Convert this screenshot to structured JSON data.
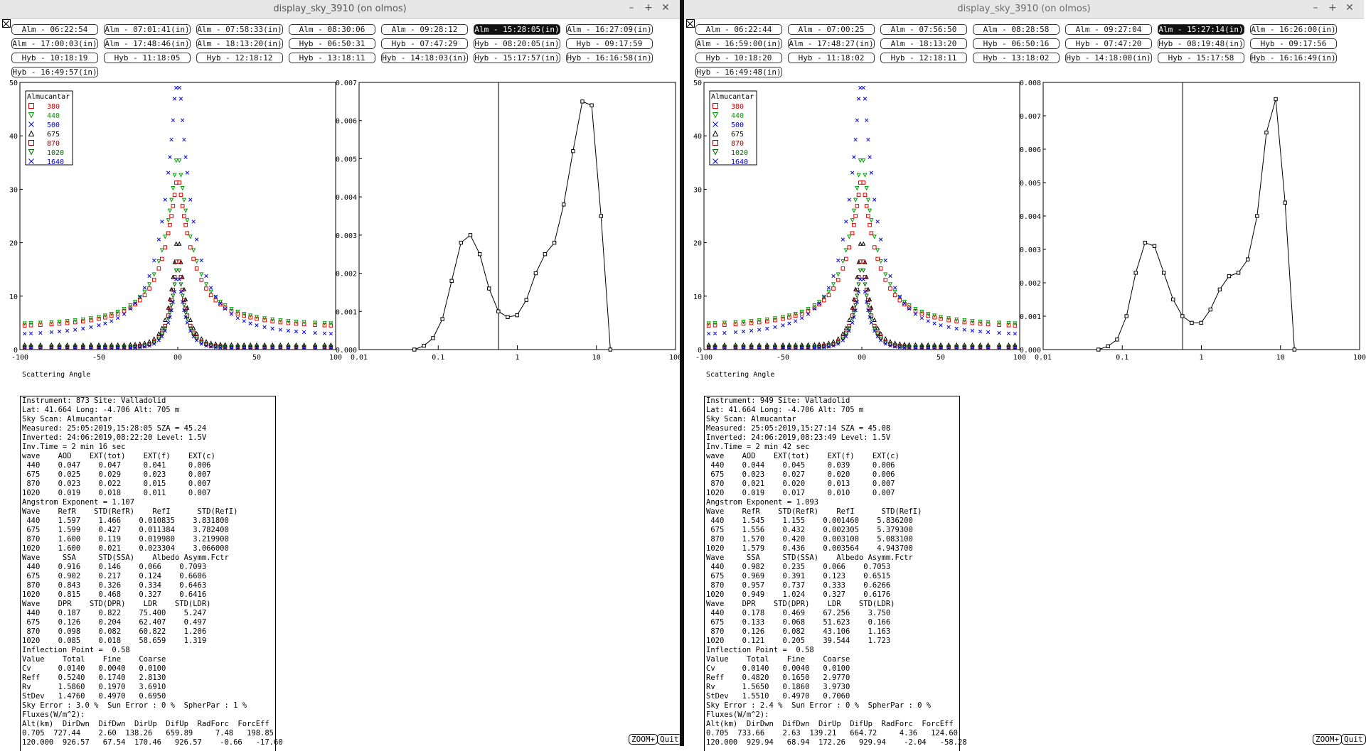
{
  "windows": [
    {
      "title": "display_sky_3910 (on olmos)",
      "selected": 5,
      "scans": [
        "Alm - 06:22:54",
        "Alm - 07:01:41(in)",
        "Alm - 07:58:33(in)",
        "Alm - 08:30:06",
        "Alm - 09:28:12",
        "Alm - 15:28:05(in)",
        "Alm - 16:27:09(in)",
        "Alm - 17:00:03(in)",
        "Alm - 17:48:46(in)",
        "Alm - 18:13:20(in)",
        "Hyb - 06:50:31",
        "Hyb - 07:47:29",
        "Hyb - 08:20:05(in)",
        "Hyb - 09:17:59",
        "Hyb - 10:18:19",
        "Hyb - 11:18:05",
        "Hyb - 12:18:12",
        "Hyb - 13:18:11",
        "Hyb - 14:18:03(in)",
        "Hyb - 15:17:57(in)",
        "Hyb - 16:16:58(in)",
        "Hyb - 16:49:57(in)"
      ],
      "sky_ticks_y": [
        "50",
        "40",
        "30",
        "20",
        "10",
        "0"
      ],
      "sky_ticks_x": [
        "-100",
        "-50",
        "00",
        "50",
        "100"
      ],
      "sky_xlabel": "Scattering Angle",
      "legend_title": "Almucantar",
      "legend": [
        {
          "label": "380",
          "color": "#e00000",
          "marker": "square"
        },
        {
          "label": "440",
          "color": "#00a000",
          "marker": "tri-down"
        },
        {
          "label": "500",
          "color": "#0000e0",
          "marker": "x"
        },
        {
          "label": "675",
          "color": "#000000",
          "marker": "tri-up"
        },
        {
          "label": "870",
          "color": "#8b0000",
          "marker": "square"
        },
        {
          "label": "1020",
          "color": "#006400",
          "marker": "tri-down"
        },
        {
          "label": "1640",
          "color": "#0000cd",
          "marker": "x"
        }
      ],
      "size_ticks_y": [
        "0.007",
        "0.006",
        "0.005",
        "0.004",
        "0.003",
        "0.002",
        "0.001",
        "0.000"
      ],
      "size_ticks_x": [
        "0.01",
        "0.1",
        "1",
        "10",
        "100"
      ],
      "size_ymax": 0.007,
      "inflection_radius": 0.58,
      "size_r": [
        0.05,
        0.066,
        0.086,
        0.113,
        0.148,
        0.194,
        0.255,
        0.335,
        0.439,
        0.576,
        0.756,
        0.992,
        1.302,
        1.708,
        2.241,
        2.94,
        3.857,
        5.061,
        6.641,
        8.713,
        11.432,
        15.0
      ],
      "size_values": [
        0.0,
        0.0001,
        0.0003,
        0.0008,
        0.0018,
        0.0028,
        0.003,
        0.0025,
        0.0016,
        0.001,
        0.00085,
        0.0009,
        0.0013,
        0.002,
        0.0025,
        0.0028,
        0.0038,
        0.0052,
        0.0065,
        0.0064,
        0.0035,
        0.0
      ],
      "info": [
        "Instrument: 873 Site: Valladolid",
        "Lat: 41.664 Long: -4.706 Alt: 705 m",
        "Sky Scan: Almucantar",
        "Measured: 25:05:2019,15:28:05 SZA = 45.24",
        "Inverted: 24:06:2019,08:22:20 Level: 1.5V",
        "Inv.Time = 2 min 16 sec",
        "wave    AOD    EXT(tot)    EXT(f)    EXT(c)",
        " 440    0.047    0.047     0.041     0.006",
        " 675    0.025    0.029     0.023     0.007",
        " 870    0.023    0.022     0.015     0.007",
        "1020    0.019    0.018     0.011     0.007",
        "Angstrom Exponent = 1.107",
        "Wave    RefR    STD(RefR)    RefI      STD(RefI)",
        " 440    1.597    1.466    0.010835    3.831800",
        " 675    1.599    0.427    0.011384    3.782400",
        " 870    1.600    0.119    0.019980    3.219900",
        "1020    1.600    0.021    0.023304    3.066000",
        "Wave     SSA     STD(SSA)    Albedo Asymm.Fctr",
        " 440    0.916    0.146    0.066    0.7093",
        " 675    0.902    0.217    0.124    0.6606",
        " 870    0.843    0.326    0.334    0.6463",
        "1020    0.815    0.468    0.327    0.6416",
        "Wave    DPR    STD(DPR)    LDR    STD(LDR)",
        " 440    0.187    0.822    75.400    5.247",
        " 675    0.126    0.204    62.407    0.497",
        " 870    0.098    0.082    60.822    1.206",
        "1020    0.085    0.018    58.659    1.319",
        "Inflection Point =  0.58",
        "Value    Total    Fine    Coarse",
        "Cv      0.0140   0.0040   0.0100",
        "Reff    0.5240   0.1740   2.8130",
        "Rv      1.5860   0.1970   3.6910",
        "StDev   1.4760   0.4970   0.6950",
        "Sky Error : 3.0 %  Sun Error : 0 %  SpherPar : 1 %",
        "Fluxes(W/m^2):",
        "Alt(km)  DirDwn  DifDwn  DirUp  DifUp  RadForc  ForcEff",
        "0.705  727.44    2.60  138.26   659.89     7.48   198.85",
        "120.000  926.57   67.54  170.46   926.57    -0.66   -17.60"
      ],
      "zoom_label": "ZOOM+",
      "quit_label": "Quit"
    },
    {
      "title": "display_sky_3910 (on olmos)",
      "selected": 5,
      "scans": [
        "Alm - 06:22:44",
        "Alm - 07:00:25",
        "Alm - 07:56:50",
        "Alm - 08:28:58",
        "Alm - 09:27:04",
        "Alm - 15:27:14(in)",
        "Alm - 16:26:00(in)",
        "Alm - 16:59:00(in)",
        "Alm - 17:48:27(in)",
        "Alm - 18:13:20",
        "Hyb - 06:50:16",
        "Hyb - 07:47:20",
        "Hyb - 08:19:48(in)",
        "Hyb - 09:17:56",
        "Hyb - 10:18:20",
        "Hyb - 11:18:02",
        "Hyb - 12:18:11",
        "Hyb - 13:18:02",
        "Hyb - 14:18:00(in)",
        "Hyb - 15:17:58",
        "Hyb - 16:16:49(in)",
        "Hyb - 16:49:48(in)"
      ],
      "sky_ticks_y": [
        "50",
        "40",
        "30",
        "20",
        "10",
        "0"
      ],
      "sky_ticks_x": [
        "-100",
        "-50",
        "00",
        "50",
        "100"
      ],
      "sky_xlabel": "Scattering Angle",
      "legend_title": "Almucantar",
      "legend": [
        {
          "label": "380",
          "color": "#e00000",
          "marker": "square"
        },
        {
          "label": "440",
          "color": "#00a000",
          "marker": "tri-down"
        },
        {
          "label": "500",
          "color": "#0000e0",
          "marker": "x"
        },
        {
          "label": "675",
          "color": "#000000",
          "marker": "tri-up"
        },
        {
          "label": "870",
          "color": "#8b0000",
          "marker": "square"
        },
        {
          "label": "1020",
          "color": "#006400",
          "marker": "tri-down"
        },
        {
          "label": "1640",
          "color": "#0000cd",
          "marker": "x"
        }
      ],
      "size_ticks_y": [
        "0.008",
        "0.007",
        "0.006",
        "0.005",
        "0.004",
        "0.003",
        "0.002",
        "0.001",
        "0.000"
      ],
      "size_ticks_x": [
        "0.01",
        "0.1",
        "1",
        "10",
        "100"
      ],
      "size_ymax": 0.008,
      "inflection_radius": 0.58,
      "size_r": [
        0.05,
        0.066,
        0.086,
        0.113,
        0.148,
        0.194,
        0.255,
        0.335,
        0.439,
        0.576,
        0.756,
        0.992,
        1.302,
        1.708,
        2.241,
        2.94,
        3.857,
        5.061,
        6.641,
        8.713,
        11.432,
        15.0
      ],
      "size_values": [
        0.0,
        0.0001,
        0.0003,
        0.001,
        0.0023,
        0.0032,
        0.0031,
        0.0023,
        0.0015,
        0.001,
        0.0008,
        0.0008,
        0.0012,
        0.0018,
        0.0022,
        0.0023,
        0.0027,
        0.004,
        0.0065,
        0.0075,
        0.0044,
        0.0
      ],
      "info": [
        "Instrument: 949 Site: Valladolid",
        "Lat: 41.664 Long: -4.706 Alt: 705 m",
        "Sky Scan: Almucantar",
        "Measured: 25:05:2019,15:27:14 SZA = 45.08",
        "Inverted: 24:06:2019,08:23:49 Level: 1.5V",
        "Inv.Time = 2 min 42 sec",
        "wave    AOD    EXT(tot)    EXT(f)    EXT(c)",
        " 440    0.044    0.045     0.039     0.006",
        " 675    0.023    0.027     0.020     0.006",
        " 870    0.021    0.020     0.013     0.007",
        "1020    0.019    0.017     0.010     0.007",
        "Angstrom Exponent = 1.093",
        "Wave    RefR    STD(RefR)    RefI      STD(RefI)",
        " 440    1.545    1.155    0.001460    5.836200",
        " 675    1.556    0.432    0.002305    5.379300",
        " 870    1.570    0.420    0.003100    5.083100",
        "1020    1.579    0.436    0.003564    4.943700",
        "Wave     SSA     STD(SSA)    Albedo Asymm.Fctr",
        " 440    0.982    0.235    0.066    0.7053",
        " 675    0.969    0.391    0.123    0.6515",
        " 870    0.957    0.737    0.333    0.6266",
        "1020    0.949    1.024    0.327    0.6176",
        "Wave    DPR    STD(DPR)    LDR    STD(LDR)",
        " 440    0.178    0.469    67.256    3.750",
        " 675    0.133    0.068    51.623    0.166",
        " 870    0.126    0.082    43.106    1.163",
        "1020    0.121    0.205    39.544    1.723",
        "Inflection Point =  0.58",
        "Value    Total    Fine    Coarse",
        "Cv      0.0140   0.0040   0.0100",
        "Reff    0.4820   0.1650   2.9770",
        "Rv      1.5650   0.1860   3.9730",
        "StDev   1.5510   0.4970   0.7060",
        "Sky Error : 2.4 %  Sun Error : 0 %  SpherPar : 0 %",
        "Fluxes(W/m^2):",
        "Alt(km)  DirDwn  DifDwn  DirUp  DifUp  RadForc  ForcEff",
        "0.705  733.66    2.63  139.21   664.72     4.36   124.60",
        "120.000  929.94   68.94  172.26   929.94    -2.04   -58.28"
      ],
      "zoom_label": "ZOOM+",
      "quit_label": "Quit"
    }
  ],
  "window_controls": {
    "minimize": "–",
    "maximize": "+",
    "close": "✕"
  }
}
